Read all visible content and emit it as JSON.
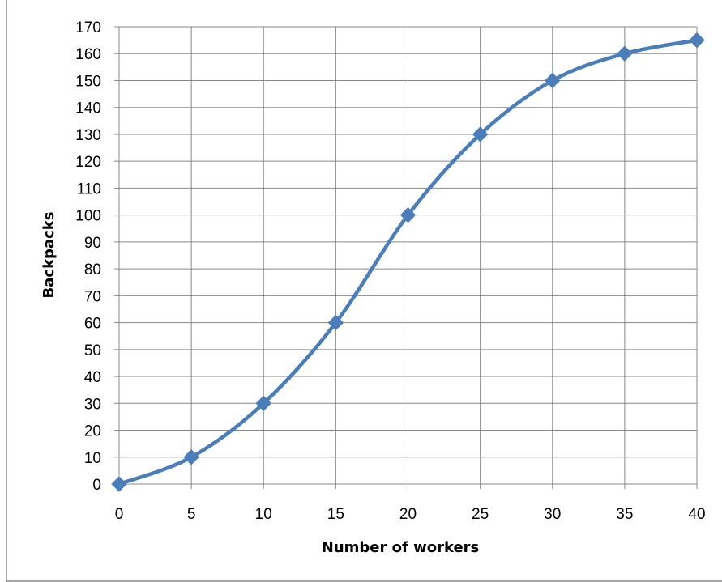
{
  "chart_data": {
    "type": "line",
    "title": "",
    "xlabel": "Number of workers",
    "ylabel": "Backpacks",
    "xlim": [
      0,
      40
    ],
    "ylim": [
      0,
      170
    ],
    "xticks": [
      "0",
      "5",
      "10",
      "15",
      "20",
      "25",
      "30",
      "35",
      "40"
    ],
    "yticks": [
      "0",
      "10",
      "20",
      "30",
      "40",
      "50",
      "60",
      "70",
      "80",
      "90",
      "100",
      "110",
      "120",
      "130",
      "140",
      "150",
      "160",
      "170"
    ],
    "grid": true,
    "legend": "none",
    "smooth": true,
    "colors": {
      "line": "#4a7ebb",
      "marker": "#4a7ebb",
      "grid": "#888888"
    },
    "series": [
      {
        "x": [
          0,
          5,
          10,
          15,
          20,
          25,
          30,
          35,
          40
        ],
        "values": [
          0,
          10,
          30,
          60,
          100,
          130,
          150,
          160,
          165
        ]
      }
    ]
  }
}
